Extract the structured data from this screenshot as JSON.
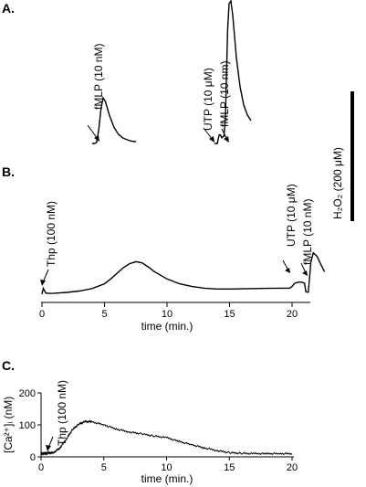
{
  "chart_data": [
    {
      "panel": "A.",
      "type": "line",
      "segments": [
        {
          "annotations": [
            "fMLP (10 nM)"
          ],
          "x": [
            0,
            0.05,
            0.1,
            0.15,
            0.2,
            0.25,
            0.3,
            0.4,
            0.5,
            0.6,
            0.7,
            0.8,
            0.9,
            1.0
          ],
          "y": [
            0,
            0,
            0.02,
            0.3,
            0.75,
            1.0,
            0.92,
            0.6,
            0.35,
            0.2,
            0.12,
            0.08,
            0.05,
            0.04
          ]
        },
        {
          "annotations": [
            "UTP (10 μM)",
            "fMLP (10 nm)"
          ],
          "x": [
            0,
            0.08,
            0.1,
            0.13,
            0.16,
            0.2,
            0.24,
            0.26,
            0.3,
            0.33,
            0.36,
            0.4,
            0.45,
            0.5,
            0.55,
            0.6,
            0.7,
            0.8,
            0.9,
            1.0
          ],
          "y": [
            0,
            0,
            0.03,
            0.06,
            0.06,
            0.04,
            0.05,
            0.05,
            0.18,
            0.5,
            0.8,
            0.98,
            1.0,
            0.9,
            0.75,
            0.6,
            0.4,
            0.27,
            0.2,
            0.16
          ]
        }
      ],
      "scale_bar": "H₂O₂ (200 μM)"
    },
    {
      "panel": "B.",
      "type": "line",
      "xlabel": "time (min.)",
      "xticks": [
        0,
        5,
        10,
        15,
        20
      ],
      "xlim": [
        0,
        22.5
      ],
      "annotations": [
        {
          "text": "Thp (100 nM)",
          "x": 0
        },
        {
          "text": "UTP (10 μM)",
          "x": 20
        },
        {
          "text": "fMLP (10 nM)",
          "x": 21.2
        }
      ],
      "x": [
        0,
        0.1,
        0.3,
        0.5,
        1,
        2,
        3,
        4,
        5,
        5.5,
        6,
        6.5,
        7,
        7.5,
        8,
        8.5,
        9,
        10,
        11,
        12,
        13,
        14,
        15,
        16,
        17,
        18,
        19,
        19.8,
        20,
        20.2,
        20.5,
        20.8,
        21.0,
        21.1,
        21.3,
        21.5,
        21.7,
        22,
        22.3,
        22.6
      ],
      "y": [
        0,
        1.5,
        0.3,
        0.2,
        0.25,
        0.45,
        0.8,
        1.4,
        2.6,
        3.8,
        5.2,
        6.6,
        7.6,
        8.1,
        7.8,
        6.8,
        5.6,
        3.8,
        2.6,
        1.9,
        1.5,
        1.3,
        1.3,
        1.35,
        1.4,
        1.45,
        1.5,
        1.5,
        1.9,
        2.7,
        3.0,
        3.0,
        2.7,
        0.6,
        0.5,
        8.0,
        10.3,
        9.4,
        7.4,
        5.6
      ]
    },
    {
      "panel": "C.",
      "type": "line",
      "xlabel": "time (min.)",
      "ylabel": "[Ca²⁺]ᵢ (nM)",
      "xticks": [
        0,
        5,
        10,
        15,
        20
      ],
      "yticks": [
        0,
        100,
        200
      ],
      "xlim": [
        0,
        20
      ],
      "ylim": [
        0,
        200
      ],
      "annotations": [
        {
          "text": "Thp (100 nM)",
          "x": 0.5
        }
      ],
      "x": [
        0,
        0.3,
        0.6,
        1,
        1.5,
        2,
        2.5,
        3,
        3.5,
        4,
        5,
        6,
        7,
        8,
        9,
        10,
        11,
        12,
        13,
        14,
        15,
        16,
        17,
        18,
        19,
        20
      ],
      "y": [
        10,
        10,
        12,
        13,
        28,
        55,
        85,
        102,
        110,
        110,
        100,
        87,
        78,
        72,
        65,
        60,
        48,
        38,
        28,
        20,
        13,
        11,
        10,
        10,
        10,
        10
      ]
    }
  ]
}
